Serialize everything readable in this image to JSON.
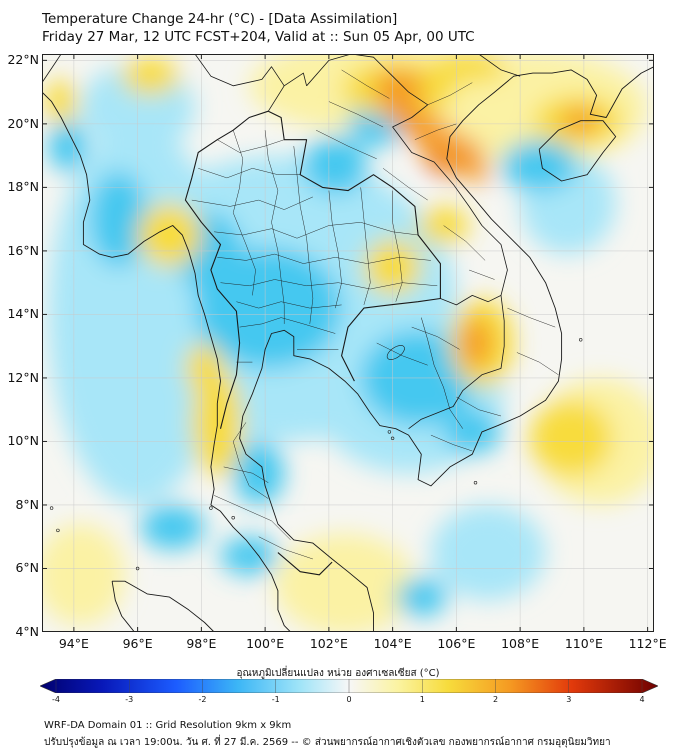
{
  "header": {
    "title": "Temperature Change 24-hr (°C) - [Data Assimilation]",
    "subtitle": "Friday 27 Mar, 12 UTC FCST+204, Valid at :: Sun 05 Apr, 00 UTC"
  },
  "map": {
    "lat_labels": [
      "22°N",
      "20°N",
      "18°N",
      "16°N",
      "14°N",
      "12°N",
      "10°N",
      "8°N",
      "6°N",
      "4°N"
    ],
    "lon_labels": [
      "94°E",
      "96°E",
      "98°E",
      "100°E",
      "102°E",
      "104°E",
      "106°E",
      "108°E",
      "110°E",
      "112°E"
    ],
    "lat_range": [
      4,
      22.2
    ],
    "lon_range": [
      93,
      112.2
    ],
    "colors": {
      "cold_strong": "#00008b",
      "cold": "#1565ff",
      "cool": "#44c8f0",
      "cool_light": "#a8e6f8",
      "neutral": "#f4f4f4",
      "warm_light": "#fbf2a4",
      "warm": "#f8dc3e",
      "hot": "#f59b25",
      "hot_strong": "#e43c0c",
      "hot_extreme": "#7b0000",
      "land_line": "#1a1a1a",
      "grid_line": "#c9c9c9"
    }
  },
  "colorbar": {
    "title": "อุณหภูมิเปลี่ยนแปลง หน่วย องศาเซลเซียส (°C)",
    "ticks": [
      "-4",
      "-3",
      "-2",
      "-1",
      "0",
      "1",
      "2",
      "3",
      "4"
    ],
    "range": [
      -4,
      4
    ]
  },
  "footer": {
    "line1": "WRF-DA Domain 01 :: Grid Resolution 9km x 9km",
    "line2": "ปรับปรุงข้อมูล ณ เวลา 19:00น. วัน ศ. ที่ 27 มี.ค. 2569 -- © ส่วนพยากรณ์อากาศเชิงตัวเลข กองพยากรณ์อากาศ กรมอุตุนิยมวิทยา"
  }
}
